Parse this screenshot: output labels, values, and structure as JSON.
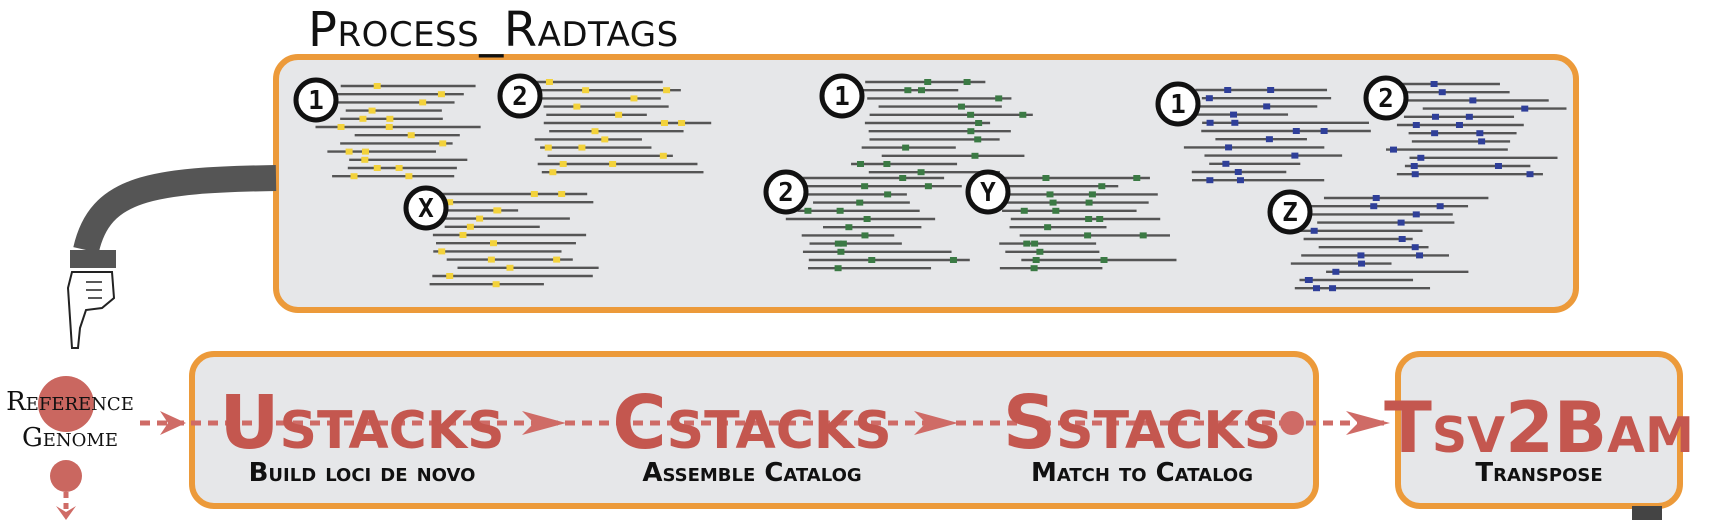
{
  "process_title": "Process_Radtags",
  "reference_genome": {
    "line1": "Reference",
    "line2": "Genome"
  },
  "stages": [
    {
      "name": "Ustacks",
      "subtitle": "Build loci de novo"
    },
    {
      "name": "Cstacks",
      "subtitle": "Assemble Catalog"
    },
    {
      "name": "Sstacks",
      "subtitle": "Match to Catalog"
    },
    {
      "name": "Tsv2Bam",
      "subtitle": "Transpose"
    }
  ],
  "samples": [
    {
      "label": "1",
      "group": "yellow"
    },
    {
      "label": "2",
      "group": "yellow"
    },
    {
      "label": "X",
      "group": "yellow"
    },
    {
      "label": "1",
      "group": "green"
    },
    {
      "label": "2",
      "group": "green"
    },
    {
      "label": "Y",
      "group": "green"
    },
    {
      "label": "1",
      "group": "blue"
    },
    {
      "label": "2",
      "group": "blue"
    },
    {
      "label": "Z",
      "group": "blue"
    }
  ],
  "colors": {
    "box_border": "#ec9a3a",
    "box_fill": "#e6e7e9",
    "stage_text": "#c4574f",
    "arrow": "#cf6b66",
    "read_line": "#555555",
    "yellow": "#f3d23b",
    "green": "#3b7a44",
    "blue": "#2f3f99"
  },
  "icons": [
    "pointing-hand-icon",
    "sleeve-arm-icon"
  ]
}
